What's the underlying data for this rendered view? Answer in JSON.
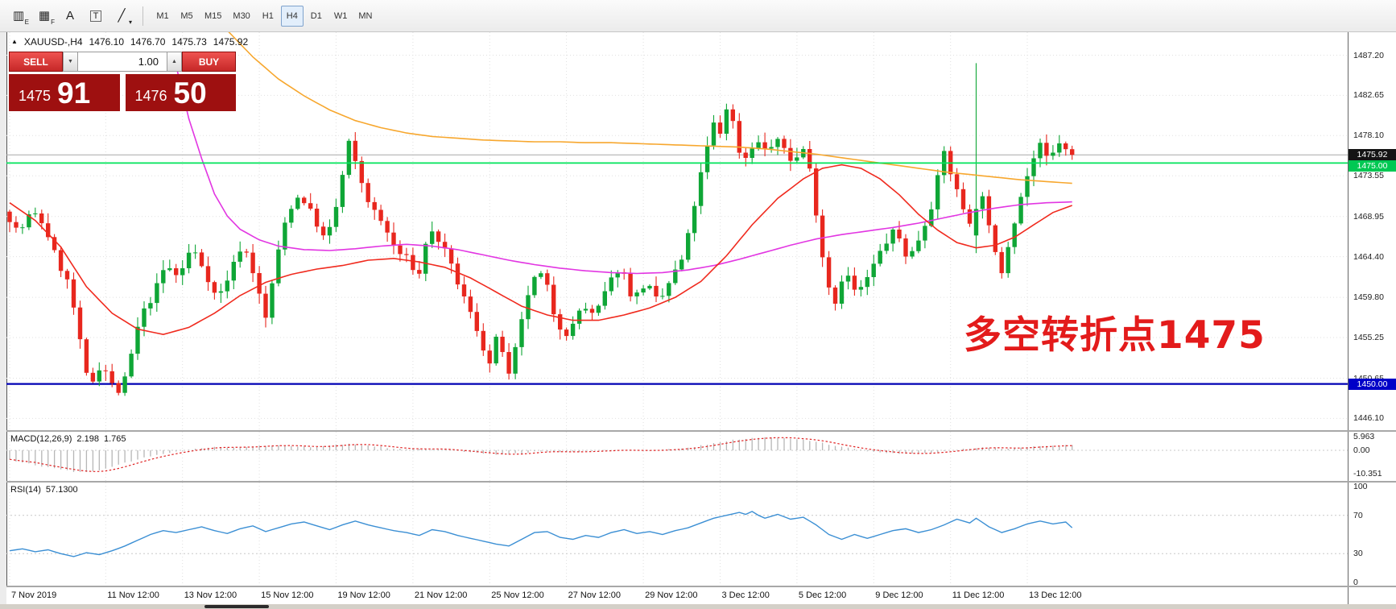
{
  "toolbar": {
    "icon_buttons": [
      {
        "name": "candle-chart-icon",
        "glyph": "▥",
        "sub": "E",
        "boxed": false
      },
      {
        "name": "grid-window-icon",
        "glyph": "▦",
        "sub": "F",
        "boxed": false
      },
      {
        "name": "text-annotation-icon",
        "glyph": "A",
        "sub": "",
        "boxed": false
      },
      {
        "name": "text-box-icon",
        "glyph": "T",
        "sub": "",
        "boxed": true
      },
      {
        "name": "draw-trendline-icon",
        "glyph": "╱",
        "sub": "▾",
        "boxed": false
      }
    ],
    "timeframes": [
      "M1",
      "M5",
      "M15",
      "M30",
      "H1",
      "H4",
      "D1",
      "W1",
      "MN"
    ],
    "active_timeframe": "H4"
  },
  "chart": {
    "title": {
      "toggle_glyph": "▲",
      "symbol": "XAUUSD-,H4",
      "open": "1476.10",
      "high": "1476.70",
      "low": "1475.73",
      "close": "1475.92"
    },
    "one_click": {
      "sell_label": "SELL",
      "buy_label": "BUY",
      "volume": "1.00",
      "down_glyph": "▼",
      "up_glyph": "▲",
      "sell_price_big": "1475",
      "sell_price_pips": "91",
      "buy_price_big": "1476",
      "buy_price_pips": "50"
    },
    "annotation": "多空转折点1475",
    "price_axis": {
      "labels": [
        "1487.20",
        "1482.65",
        "1478.10",
        "1473.55",
        "1468.95",
        "1464.40",
        "1459.80",
        "1455.25",
        "1450.65",
        "1446.10"
      ],
      "current": "1475.92",
      "level_green": "1475.00",
      "level_blue": "1450.00"
    },
    "date_axis": [
      {
        "bar": 0,
        "label": "7 Nov 2019"
      },
      {
        "bar": 15,
        "label": "11 Nov 12:00"
      },
      {
        "bar": 27,
        "label": "13 Nov 12:00"
      },
      {
        "bar": 39,
        "label": "15 Nov 12:00"
      },
      {
        "bar": 51,
        "label": "19 Nov 12:00"
      },
      {
        "bar": 63,
        "label": "21 Nov 12:00"
      },
      {
        "bar": 75,
        "label": "25 Nov 12:00"
      },
      {
        "bar": 87,
        "label": "27 Nov 12:00"
      },
      {
        "bar": 99,
        "label": "29 Nov 12:00"
      },
      {
        "bar": 111,
        "label": "3 Dec 12:00"
      },
      {
        "bar": 123,
        "label": "5 Dec 12:00"
      },
      {
        "bar": 135,
        "label": "9 Dec 12:00"
      },
      {
        "bar": 147,
        "label": "11 Dec 12:00"
      },
      {
        "bar": 159,
        "label": "13 Dec 12:00"
      }
    ]
  },
  "macd": {
    "label": "MACD(12,26,9)",
    "value_main": "2.198",
    "value_signal": "1.765",
    "axis": [
      {
        "t": "5.963",
        "v": 5.963
      },
      {
        "t": "0.00",
        "v": 0
      },
      {
        "t": "-10.351",
        "v": -10.351
      }
    ]
  },
  "rsi": {
    "label": "RSI(14)",
    "value": "57.1300",
    "axis": [
      {
        "t": "100",
        "v": 100
      },
      {
        "t": "70",
        "v": 70
      },
      {
        "t": "30",
        "v": 30
      },
      {
        "t": "0",
        "v": 0
      }
    ]
  },
  "colors": {
    "candle_up": "#0fa636",
    "candle_down": "#e8271e",
    "ma_red": "#f02a1e",
    "ma_magenta": "#e236e2",
    "ma_orange": "#f7a72e",
    "level_green": "#00e45a",
    "level_green_tag": "#00c853",
    "level_blue": "#0000b4",
    "level_blue_tag": "#0000c8",
    "current_line": "#a8a8a8",
    "current_tag": "#141414",
    "macd_hist": "#b6b6b6",
    "macd_signal": "#e02222",
    "rsi_line": "#3b8fd4",
    "annotation_red": "#e31b1b"
  },
  "chart_data": {
    "type": "candlestick+indicators",
    "symbol": "XAUUSD",
    "timeframe": "H4",
    "bars": 167,
    "levels": {
      "green": 1475.0,
      "blue": 1450.0,
      "current": 1475.92
    },
    "price_path": [
      [
        0,
        1469.5
      ],
      [
        2,
        1467
      ],
      [
        4,
        1469.5
      ],
      [
        6,
        1468
      ],
      [
        8,
        1464
      ],
      [
        10,
        1461
      ],
      [
        11.5,
        1455
      ],
      [
        13,
        1449.5
      ],
      [
        15,
        1452.5
      ],
      [
        16.5,
        1450
      ],
      [
        18,
        1448.8
      ],
      [
        19.5,
        1453
      ],
      [
        21,
        1457.5
      ],
      [
        23,
        1460
      ],
      [
        25,
        1463.5
      ],
      [
        27,
        1462
      ],
      [
        29,
        1465.5
      ],
      [
        31,
        1463
      ],
      [
        33,
        1459.5
      ],
      [
        35,
        1462.5
      ],
      [
        37,
        1466
      ],
      [
        39,
        1462
      ],
      [
        40.5,
        1457
      ],
      [
        42,
        1463
      ],
      [
        44,
        1469.5
      ],
      [
        46,
        1471.5
      ],
      [
        48,
        1469
      ],
      [
        50,
        1466
      ],
      [
        52,
        1471
      ],
      [
        53.5,
        1477.5
      ],
      [
        55,
        1474
      ],
      [
        57,
        1470
      ],
      [
        59,
        1468
      ],
      [
        61,
        1465
      ],
      [
        63,
        1464
      ],
      [
        64.5,
        1462
      ],
      [
        66,
        1467.5
      ],
      [
        68,
        1466
      ],
      [
        70,
        1462.5
      ],
      [
        72,
        1459
      ],
      [
        74,
        1455.5
      ],
      [
        75.5,
        1452
      ],
      [
        77,
        1456
      ],
      [
        78.5,
        1450.5
      ],
      [
        80,
        1455
      ],
      [
        82,
        1461.5
      ],
      [
        84,
        1462.5
      ],
      [
        86,
        1457
      ],
      [
        88,
        1455.5
      ],
      [
        90,
        1459
      ],
      [
        92,
        1457.5
      ],
      [
        94,
        1461
      ],
      [
        96,
        1463.5
      ],
      [
        98,
        1459.5
      ],
      [
        100,
        1461.5
      ],
      [
        102,
        1459
      ],
      [
        104,
        1462
      ],
      [
        106,
        1464.5
      ],
      [
        107.5,
        1470
      ],
      [
        109,
        1475
      ],
      [
        110.5,
        1479.5
      ],
      [
        112,
        1478
      ],
      [
        113,
        1483.5
      ],
      [
        114,
        1477
      ],
      [
        115.5,
        1475.5
      ],
      [
        117,
        1477.5
      ],
      [
        119,
        1476.5
      ],
      [
        121,
        1477.5
      ],
      [
        123,
        1475
      ],
      [
        125,
        1477
      ],
      [
        126.5,
        1470
      ],
      [
        128,
        1462.5
      ],
      [
        129.5,
        1459
      ],
      [
        131,
        1463
      ],
      [
        133,
        1460
      ],
      [
        135,
        1462.5
      ],
      [
        137,
        1465.5
      ],
      [
        139,
        1467.5
      ],
      [
        141,
        1464
      ],
      [
        143,
        1467
      ],
      [
        145,
        1471
      ],
      [
        146.5,
        1476.5
      ],
      [
        148,
        1473
      ],
      [
        149.5,
        1470
      ],
      [
        151,
        1468
      ],
      [
        152.5,
        1472
      ],
      [
        154,
        1466
      ],
      [
        155.5,
        1462.5
      ],
      [
        157,
        1467
      ],
      [
        158.5,
        1471
      ],
      [
        160,
        1474.5
      ],
      [
        161.5,
        1477
      ],
      [
        163,
        1475
      ],
      [
        164.5,
        1477.5
      ],
      [
        166,
        1475.9
      ]
    ],
    "spike": {
      "bar": 151,
      "o": 1466.8,
      "h": 1486.3,
      "l": 1464.8,
      "c": 1469.8
    },
    "ma_red": [
      [
        0,
        1470.5
      ],
      [
        4,
        1468.5
      ],
      [
        8,
        1465.5
      ],
      [
        12,
        1461
      ],
      [
        16,
        1458
      ],
      [
        20,
        1456.2
      ],
      [
        24,
        1455.6
      ],
      [
        28,
        1456.4
      ],
      [
        32,
        1458
      ],
      [
        36,
        1460
      ],
      [
        40,
        1461.5
      ],
      [
        44,
        1462.4
      ],
      [
        48,
        1463
      ],
      [
        52,
        1463.4
      ],
      [
        56,
        1464
      ],
      [
        60,
        1464.2
      ],
      [
        64,
        1463.8
      ],
      [
        68,
        1463.2
      ],
      [
        72,
        1462
      ],
      [
        76,
        1460.4
      ],
      [
        80,
        1458.8
      ],
      [
        84,
        1457.8
      ],
      [
        88,
        1457.2
      ],
      [
        92,
        1457.2
      ],
      [
        96,
        1457.8
      ],
      [
        100,
        1458.6
      ],
      [
        104,
        1459.8
      ],
      [
        108,
        1461.6
      ],
      [
        112,
        1464.5
      ],
      [
        116,
        1468
      ],
      [
        120,
        1471
      ],
      [
        124,
        1473.2
      ],
      [
        127,
        1474.4
      ],
      [
        130,
        1474.8
      ],
      [
        133,
        1474.4
      ],
      [
        136,
        1473.2
      ],
      [
        139,
        1471.4
      ],
      [
        142,
        1469.2
      ],
      [
        145,
        1467.4
      ],
      [
        148,
        1466
      ],
      [
        151,
        1465.4
      ],
      [
        154,
        1465.7
      ],
      [
        157,
        1466.6
      ],
      [
        160,
        1468
      ],
      [
        163,
        1469.4
      ],
      [
        166,
        1470.2
      ]
    ],
    "ma_magenta": [
      [
        26,
        1486
      ],
      [
        28,
        1480
      ],
      [
        30,
        1475.5
      ],
      [
        32,
        1471.5
      ],
      [
        34,
        1469
      ],
      [
        36,
        1467.5
      ],
      [
        39,
        1466.3
      ],
      [
        42,
        1465.6
      ],
      [
        46,
        1465.2
      ],
      [
        50,
        1465.1
      ],
      [
        54,
        1465.3
      ],
      [
        58,
        1465.6
      ],
      [
        62,
        1465.8
      ],
      [
        66,
        1465.6
      ],
      [
        70,
        1465.2
      ],
      [
        74,
        1464.6
      ],
      [
        78,
        1464
      ],
      [
        82,
        1463.5
      ],
      [
        86,
        1463.1
      ],
      [
        90,
        1462.8
      ],
      [
        94,
        1462.6
      ],
      [
        98,
        1462.5
      ],
      [
        102,
        1462.6
      ],
      [
        106,
        1462.9
      ],
      [
        110,
        1463.4
      ],
      [
        114,
        1464.1
      ],
      [
        118,
        1464.9
      ],
      [
        122,
        1465.7
      ],
      [
        126,
        1466.4
      ],
      [
        130,
        1466.9
      ],
      [
        134,
        1467.3
      ],
      [
        138,
        1467.7
      ],
      [
        142,
        1468.2
      ],
      [
        146,
        1468.8
      ],
      [
        150,
        1469.4
      ],
      [
        154,
        1469.9
      ],
      [
        158,
        1470.3
      ],
      [
        162,
        1470.5
      ],
      [
        166,
        1470.6
      ]
    ],
    "ma_orange": [
      [
        34,
        1490
      ],
      [
        38,
        1487
      ],
      [
        42,
        1484.5
      ],
      [
        46,
        1482.6
      ],
      [
        50,
        1481
      ],
      [
        54,
        1479.8
      ],
      [
        58,
        1479
      ],
      [
        62,
        1478.4
      ],
      [
        66,
        1478
      ],
      [
        70,
        1477.8
      ],
      [
        74,
        1477.6
      ],
      [
        78,
        1477.5
      ],
      [
        82,
        1477.4
      ],
      [
        86,
        1477.4
      ],
      [
        90,
        1477.3
      ],
      [
        94,
        1477.3
      ],
      [
        98,
        1477.2
      ],
      [
        102,
        1477.1
      ],
      [
        106,
        1477
      ],
      [
        110,
        1476.9
      ],
      [
        114,
        1476.8
      ],
      [
        118,
        1476.6
      ],
      [
        122,
        1476.3
      ],
      [
        126,
        1476
      ],
      [
        130,
        1475.6
      ],
      [
        134,
        1475.2
      ],
      [
        138,
        1474.8
      ],
      [
        142,
        1474.4
      ],
      [
        146,
        1474
      ],
      [
        150,
        1473.7
      ],
      [
        154,
        1473.4
      ],
      [
        158,
        1473.1
      ],
      [
        162,
        1472.9
      ],
      [
        166,
        1472.7
      ]
    ],
    "macd_hist": [
      [
        0,
        -4
      ],
      [
        2,
        -5.5
      ],
      [
        5,
        -7
      ],
      [
        8,
        -8.5
      ],
      [
        11,
        -9.8
      ],
      [
        14,
        -9
      ],
      [
        17,
        -6.5
      ],
      [
        20,
        -4
      ],
      [
        23,
        -2
      ],
      [
        26,
        -0.5
      ],
      [
        29,
        0.8
      ],
      [
        32,
        1.5
      ],
      [
        35,
        1.2
      ],
      [
        38,
        1.8
      ],
      [
        41,
        2.2
      ],
      [
        44,
        2
      ],
      [
        47,
        1.4
      ],
      [
        50,
        2.2
      ],
      [
        53,
        2.8
      ],
      [
        56,
        2.2
      ],
      [
        59,
        1.2
      ],
      [
        62,
        0.4
      ],
      [
        65,
        0.8
      ],
      [
        68,
        0.2
      ],
      [
        71,
        -0.6
      ],
      [
        74,
        -1.4
      ],
      [
        77,
        -2
      ],
      [
        80,
        -1.2
      ],
      [
        83,
        -0.4
      ],
      [
        86,
        -0.8
      ],
      [
        89,
        -0.6
      ],
      [
        92,
        -0.2
      ],
      [
        95,
        0.2
      ],
      [
        98,
        -0.2
      ],
      [
        101,
        0.1
      ],
      [
        104,
        0.6
      ],
      [
        107,
        1.6
      ],
      [
        110,
        3.2
      ],
      [
        113,
        4.6
      ],
      [
        116,
        5.4
      ],
      [
        119,
        5.8
      ],
      [
        122,
        5.2
      ],
      [
        125,
        4.4
      ],
      [
        128,
        2.6
      ],
      [
        131,
        1
      ],
      [
        134,
        -0.2
      ],
      [
        137,
        -1
      ],
      [
        140,
        -1.6
      ],
      [
        143,
        -1.2
      ],
      [
        146,
        -0.4
      ],
      [
        149,
        0.6
      ],
      [
        152,
        1.4
      ],
      [
        155,
        0.8
      ],
      [
        158,
        1.2
      ],
      [
        161,
        1.8
      ],
      [
        164,
        2.1
      ],
      [
        166,
        2.2
      ]
    ],
    "rsi_path": [
      [
        0,
        33
      ],
      [
        2,
        35
      ],
      [
        4,
        32
      ],
      [
        6,
        34
      ],
      [
        8,
        30
      ],
      [
        10,
        27
      ],
      [
        12,
        31
      ],
      [
        14,
        29
      ],
      [
        16,
        33
      ],
      [
        18,
        38
      ],
      [
        20,
        44
      ],
      [
        22,
        50
      ],
      [
        24,
        54
      ],
      [
        26,
        52
      ],
      [
        28,
        55
      ],
      [
        30,
        58
      ],
      [
        32,
        54
      ],
      [
        34,
        51
      ],
      [
        36,
        56
      ],
      [
        38,
        59
      ],
      [
        40,
        53
      ],
      [
        42,
        57
      ],
      [
        44,
        61
      ],
      [
        46,
        63
      ],
      [
        48,
        59
      ],
      [
        50,
        55
      ],
      [
        52,
        60
      ],
      [
        54,
        64
      ],
      [
        56,
        60
      ],
      [
        58,
        57
      ],
      [
        60,
        54
      ],
      [
        62,
        52
      ],
      [
        64,
        49
      ],
      [
        66,
        55
      ],
      [
        68,
        53
      ],
      [
        70,
        49
      ],
      [
        72,
        46
      ],
      [
        74,
        43
      ],
      [
        76,
        40
      ],
      [
        78,
        38
      ],
      [
        80,
        45
      ],
      [
        82,
        52
      ],
      [
        84,
        53
      ],
      [
        86,
        47
      ],
      [
        88,
        45
      ],
      [
        90,
        49
      ],
      [
        92,
        47
      ],
      [
        94,
        52
      ],
      [
        96,
        55
      ],
      [
        98,
        51
      ],
      [
        100,
        53
      ],
      [
        102,
        50
      ],
      [
        104,
        54
      ],
      [
        106,
        57
      ],
      [
        108,
        62
      ],
      [
        110,
        67
      ],
      [
        112,
        70
      ],
      [
        114,
        73
      ],
      [
        115,
        71
      ],
      [
        116,
        74
      ],
      [
        117,
        70
      ],
      [
        118,
        67
      ],
      [
        120,
        71
      ],
      [
        122,
        66
      ],
      [
        124,
        68
      ],
      [
        126,
        60
      ],
      [
        128,
        50
      ],
      [
        130,
        45
      ],
      [
        132,
        50
      ],
      [
        134,
        46
      ],
      [
        136,
        50
      ],
      [
        138,
        54
      ],
      [
        140,
        56
      ],
      [
        142,
        52
      ],
      [
        144,
        55
      ],
      [
        146,
        60
      ],
      [
        148,
        66
      ],
      [
        150,
        62
      ],
      [
        151,
        67
      ],
      [
        153,
        58
      ],
      [
        155,
        52
      ],
      [
        157,
        56
      ],
      [
        159,
        61
      ],
      [
        161,
        64
      ],
      [
        163,
        61
      ],
      [
        165,
        63
      ],
      [
        166,
        57.1
      ]
    ]
  }
}
